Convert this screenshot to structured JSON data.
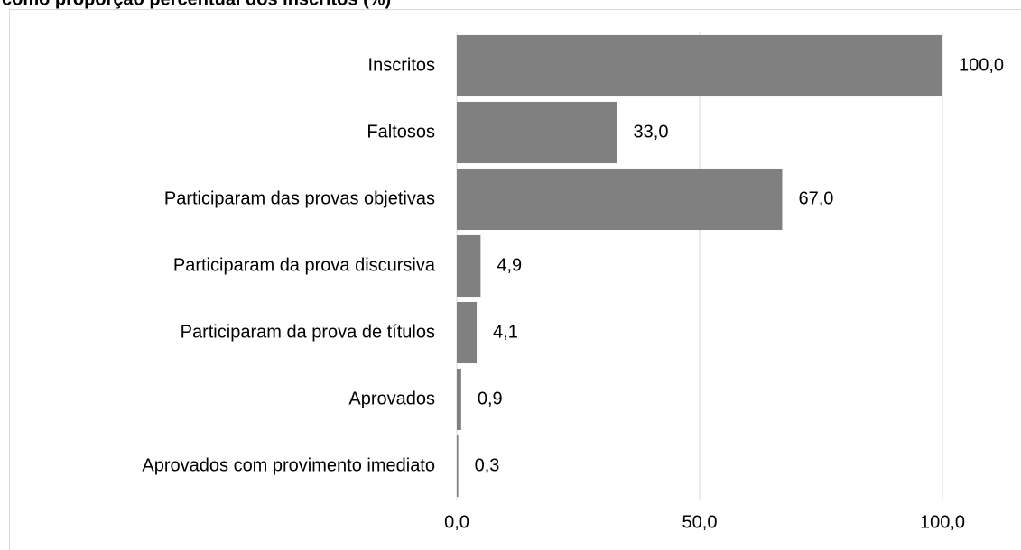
{
  "chart_data": {
    "type": "bar",
    "orientation": "horizontal",
    "title": "como proporção percentual dos inscritos (%)",
    "categories": [
      "Inscritos",
      "Faltosos",
      "Participaram das provas objetivas",
      "Participaram da prova discursiva",
      "Participaram da prova de títulos",
      "Aprovados",
      "Aprovados com provimento imediato"
    ],
    "values": [
      100.0,
      33.0,
      67.0,
      4.9,
      4.1,
      0.9,
      0.3
    ],
    "value_labels": [
      "100,0",
      "33,0",
      "67,0",
      "4,9",
      "4,1",
      "0,9",
      "0,3"
    ],
    "color": "#808080",
    "xlim": [
      0,
      100
    ],
    "xticks": [
      {
        "value": 0,
        "label": "0,0"
      },
      {
        "value": 50,
        "label": "50,0"
      },
      {
        "value": 100,
        "label": "100,0"
      }
    ],
    "grid": true
  }
}
